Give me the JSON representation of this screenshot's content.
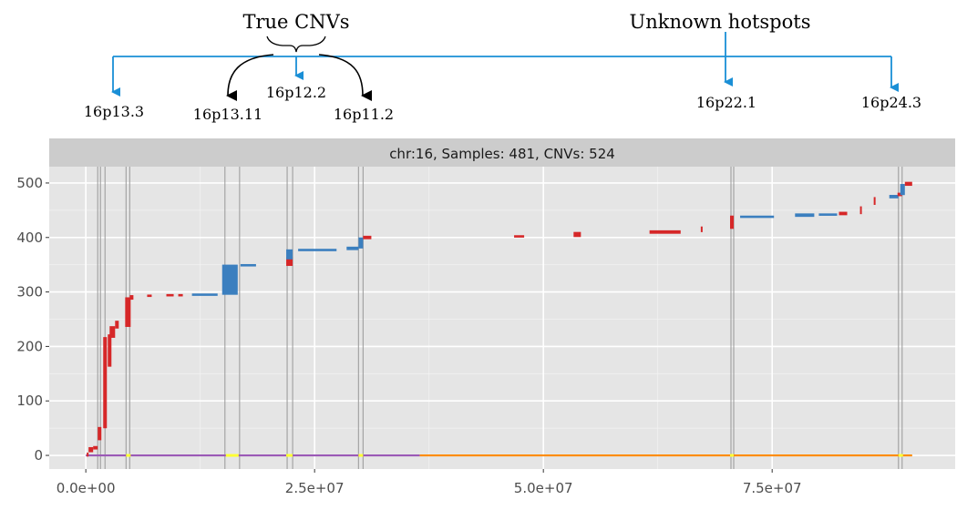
{
  "annotations": {
    "group_true": "True CNVs",
    "group_unknown": "Unknown hotspots",
    "labels": [
      {
        "id": "p13_3",
        "text": "16p13.3"
      },
      {
        "id": "p13_11",
        "text": "16p13.11"
      },
      {
        "id": "p12_2",
        "text": "16p12.2"
      },
      {
        "id": "p11_2",
        "text": "16p11.2"
      },
      {
        "id": "p22_1",
        "text": "16p22.1"
      },
      {
        "id": "p24_3",
        "text": "16p24.3"
      }
    ],
    "arrow_color": "#1a8fd6"
  },
  "chart_data": {
    "type": "scatter",
    "panel_title": "chr:16, Samples: 481, CNVs: 524",
    "xlabel": "",
    "ylabel": "",
    "xlim": [
      -4000000,
      95000000
    ],
    "ylim": [
      -25,
      530
    ],
    "x_ticks": [
      0,
      25000000,
      50000000,
      75000000
    ],
    "x_tick_labels": [
      "0.0e+00",
      "2.5e+07",
      "5.0e+07",
      "7.5e+07"
    ],
    "y_ticks": [
      0,
      100,
      200,
      300,
      400,
      500
    ],
    "y_tick_labels": [
      "0",
      "100",
      "200",
      "300",
      "400",
      "500"
    ],
    "grid": true,
    "colors": {
      "deletion": "#d62728",
      "duplication": "#3b7fbf",
      "arm_p": "#9b59b6",
      "arm_q": "#ff8c00",
      "hotspot_line": "#999999",
      "centromere": "#ffff33",
      "panel_bg": "#e5e5e5",
      "strip_bg": "#cccccc"
    },
    "hotspot_lines": [
      1300000,
      1600000,
      2100000,
      4400000,
      4800000,
      15200000,
      16800000,
      22000000,
      22600000,
      29800000,
      30300000,
      70500000,
      70800000,
      88800000,
      89200000
    ],
    "baseline": [
      {
        "name": "p-arm",
        "x0": 0,
        "x1": 36500000
      },
      {
        "name": "q-arm",
        "x0": 36500000,
        "x1": 90300000
      }
    ],
    "centromere_marks": [
      {
        "x0": 4400000,
        "x1": 4900000
      },
      {
        "x0": 15300000,
        "x1": 16700000
      },
      {
        "x0": 21900000,
        "x1": 22600000
      },
      {
        "x0": 29800000,
        "x1": 30300000
      },
      {
        "x0": 70400000,
        "x1": 70800000
      },
      {
        "x0": 88800000,
        "x1": 89300000
      }
    ],
    "segments": [
      {
        "type": "del",
        "x0": 100000,
        "x1": 300000,
        "y0": 0,
        "y1": 3
      },
      {
        "type": "del",
        "x0": 300000,
        "x1": 800000,
        "y0": 8,
        "y1": 13
      },
      {
        "type": "del",
        "x0": 800000,
        "x1": 1300000,
        "y0": 13,
        "y1": 15
      },
      {
        "type": "del",
        "x0": 1300000,
        "x1": 1700000,
        "y0": 30,
        "y1": 50
      },
      {
        "type": "del",
        "x0": 1900000,
        "x1": 2300000,
        "y0": 52,
        "y1": 215
      },
      {
        "type": "del",
        "x0": 2400000,
        "x1": 2800000,
        "y0": 165,
        "y1": 220
      },
      {
        "type": "del",
        "x0": 2600000,
        "x1": 3200000,
        "y0": 218,
        "y1": 235
      },
      {
        "type": "del",
        "x0": 3200000,
        "x1": 3600000,
        "y0": 235,
        "y1": 245
      },
      {
        "type": "del",
        "x0": 4300000,
        "x1": 4900000,
        "y0": 238,
        "y1": 288
      },
      {
        "type": "del",
        "x0": 4800000,
        "x1": 5200000,
        "y0": 288,
        "y1": 292
      },
      {
        "type": "del",
        "x0": 6700000,
        "x1": 7200000,
        "y0": 293,
        "y1": 293
      },
      {
        "type": "del",
        "x0": 8800000,
        "x1": 9600000,
        "y0": 294,
        "y1": 294
      },
      {
        "type": "del",
        "x0": 10100000,
        "x1": 10600000,
        "y0": 294,
        "y1": 294
      },
      {
        "type": "dup",
        "x0": 11600000,
        "x1": 14400000,
        "y0": 295,
        "y1": 295
      },
      {
        "type": "dup",
        "x0": 14900000,
        "x1": 16600000,
        "y0": 297,
        "y1": 348
      },
      {
        "type": "dup",
        "x0": 16900000,
        "x1": 18600000,
        "y0": 349,
        "y1": 349
      },
      {
        "type": "del",
        "x0": 21900000,
        "x1": 22600000,
        "y0": 350,
        "y1": 362
      },
      {
        "type": "dup",
        "x0": 21900000,
        "x1": 22600000,
        "y0": 362,
        "y1": 376
      },
      {
        "type": "dup",
        "x0": 23200000,
        "x1": 27400000,
        "y0": 377,
        "y1": 377
      },
      {
        "type": "dup",
        "x0": 28500000,
        "x1": 29800000,
        "y0": 379,
        "y1": 381
      },
      {
        "type": "dup",
        "x0": 29800000,
        "x1": 30300000,
        "y0": 382,
        "y1": 398
      },
      {
        "type": "del",
        "x0": 30300000,
        "x1": 31200000,
        "y0": 399,
        "y1": 401
      },
      {
        "type": "del",
        "x0": 46800000,
        "x1": 47900000,
        "y0": 402,
        "y1": 402
      },
      {
        "type": "del",
        "x0": 53300000,
        "x1": 54100000,
        "y0": 403,
        "y1": 408
      },
      {
        "type": "del",
        "x0": 61600000,
        "x1": 65000000,
        "y0": 409,
        "y1": 411
      },
      {
        "type": "del",
        "x0": 67200000,
        "x1": 67300000,
        "y0": 412,
        "y1": 418
      },
      {
        "type": "del",
        "x0": 70400000,
        "x1": 70800000,
        "y0": 418,
        "y1": 438
      },
      {
        "type": "dup",
        "x0": 71500000,
        "x1": 75200000,
        "y0": 438,
        "y1": 438
      },
      {
        "type": "dup",
        "x0": 77500000,
        "x1": 79600000,
        "y0": 440,
        "y1": 442
      },
      {
        "type": "dup",
        "x0": 80100000,
        "x1": 82100000,
        "y0": 442,
        "y1": 442
      },
      {
        "type": "del",
        "x0": 82300000,
        "x1": 83200000,
        "y0": 443,
        "y1": 445
      },
      {
        "type": "del",
        "x0": 84600000,
        "x1": 84700000,
        "y0": 445,
        "y1": 455
      },
      {
        "type": "del",
        "x0": 86100000,
        "x1": 86200000,
        "y0": 462,
        "y1": 472
      },
      {
        "type": "dup",
        "x0": 87800000,
        "x1": 88800000,
        "y0": 474,
        "y1": 476
      },
      {
        "type": "del",
        "x0": 88700000,
        "x1": 89200000,
        "y0": 478,
        "y1": 480
      },
      {
        "type": "dup",
        "x0": 89000000,
        "x1": 89500000,
        "y0": 480,
        "y1": 496
      },
      {
        "type": "del",
        "x0": 89500000,
        "x1": 90300000,
        "y0": 497,
        "y1": 500
      }
    ]
  }
}
